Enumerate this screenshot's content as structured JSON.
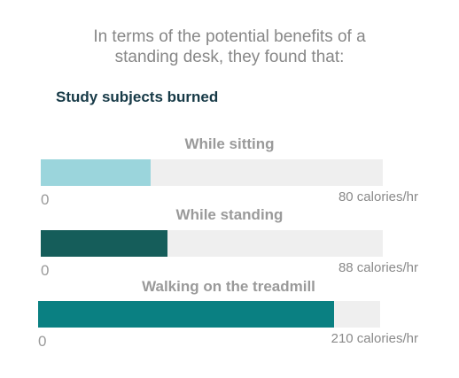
{
  "intro": {
    "line1": "In terms of the potential benefits of a",
    "line2": "standing desk, they found that:"
  },
  "heading": "Study subjects burned",
  "colors": {
    "track": "#efefef",
    "sitting": "#9bd5dc",
    "standing": "#155d5a",
    "treadmill": "#0a8082"
  },
  "chart_data": {
    "type": "bar",
    "orientation": "horizontal",
    "unit": "calories/hr",
    "categories": [
      "While sitting",
      "While standing",
      "Walking on the treadmill"
    ],
    "values": [
      80,
      88,
      210
    ],
    "series": [
      {
        "label": "While sitting",
        "value": 80,
        "fill_fraction": 0.32,
        "min_label": "0",
        "max_label": "80 calories/hr"
      },
      {
        "label": "While standing",
        "value": 88,
        "fill_fraction": 0.37,
        "min_label": "0",
        "max_label": "88 calories/hr"
      },
      {
        "label": "Walking on the treadmill",
        "value": 210,
        "fill_fraction": 0.866,
        "min_label": "0",
        "max_label": "210 calories/hr"
      }
    ]
  }
}
